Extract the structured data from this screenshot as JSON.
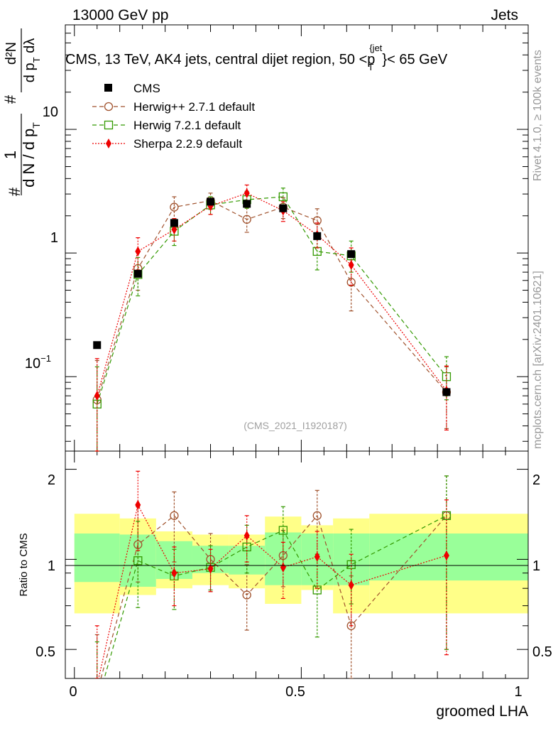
{
  "header": {
    "left": "13000 GeV pp",
    "right": "Jets"
  },
  "side_text": {
    "rivet": "Rivet 4.1.0, ≥ 100k events",
    "mcplots": "mcplots.cern.ch [arXiv:2401.10621]"
  },
  "chart_data": [
    {
      "type": "scatter",
      "panel": "main",
      "title": "CMS, 13 TeV, AK4 jets, central dijet region, 50 <p_T^{jet}< 65 GeV",
      "title_parts": {
        "pre": "CMS, 13 TeV, AK4 jets, central dijet region, 50 <p",
        "sub": "T",
        "sup": "{jet",
        "post": "}< 65 GeV"
      },
      "ylabel_parts": {
        "num": "1",
        "den": "d N / d p",
        "den_sub": "T",
        "hash": "#",
        "rnum": "d²N",
        "rden": "d p",
        "rden_sub": "T",
        "rden_post": " dλ"
      },
      "yscale": "log",
      "ylim": [
        0.025,
        70
      ],
      "xlim": [
        -0.02,
        1.0
      ],
      "ytick_labels": {
        "ten": "10",
        "one": "1",
        "tenth": "10",
        "tenth_exp": "−1"
      },
      "watermark": "(CMS_2021_I1920187)",
      "x": [
        0.05,
        0.14,
        0.22,
        0.3,
        0.38,
        0.46,
        0.535,
        0.61,
        0.82
      ],
      "series": [
        {
          "name": "CMS",
          "color": "#000000",
          "marker": "square-filled",
          "line": "none",
          "values": [
            0.18,
            0.68,
            1.75,
            2.6,
            2.5,
            2.3,
            1.37,
            0.98,
            0.075
          ]
        },
        {
          "name": "Herwig++ 2.7.1 default",
          "color": "#a0522d",
          "marker": "circle-open",
          "line": "dashed",
          "values": [
            0.065,
            0.75,
            2.35,
            2.65,
            1.87,
            2.35,
            1.83,
            0.58,
            0.075
          ],
          "err_low": [
            0.04,
            0.25,
            0.5,
            0.4,
            0.4,
            0.45,
            0.45,
            0.24,
            0.037
          ],
          "err_high": [
            0.07,
            0.3,
            0.5,
            0.4,
            0.45,
            0.45,
            0.45,
            0.3,
            0.045
          ]
        },
        {
          "name": "Herwig 7.2.1 default",
          "color": "#339900",
          "marker": "square-open",
          "line": "dashed",
          "values": [
            0.06,
            0.67,
            1.5,
            2.45,
            2.7,
            2.85,
            1.03,
            0.95,
            0.1
          ],
          "err_low": [
            0.035,
            0.22,
            0.35,
            0.4,
            0.4,
            0.5,
            0.3,
            0.25,
            0.035
          ],
          "err_high": [
            0.06,
            0.25,
            0.4,
            0.4,
            0.45,
            0.5,
            0.35,
            0.3,
            0.045
          ]
        },
        {
          "name": "Sherpa 2.2.9 default",
          "color": "#ee0000",
          "marker": "diamond-filled",
          "line": "dotted",
          "values": [
            0.07,
            1.03,
            1.55,
            2.4,
            3.05,
            2.2,
            1.4,
            0.8,
            0.077
          ],
          "err_low": [
            0.045,
            0.3,
            0.3,
            0.35,
            0.45,
            0.4,
            0.3,
            0.25,
            0.04
          ],
          "err_high": [
            0.07,
            0.3,
            0.35,
            0.35,
            0.5,
            0.4,
            0.35,
            0.3,
            0.045
          ]
        }
      ]
    },
    {
      "type": "scatter",
      "panel": "ratio",
      "ylabel": "Ratio to CMS",
      "xlabel": "groomed LHA",
      "ylim": [
        0.4,
        2.3
      ],
      "xlim": [
        -0.02,
        1.0
      ],
      "xtick_labels": [
        "0",
        "0.5",
        "1"
      ],
      "ytick_labels": [
        "0.5",
        "1",
        "2"
      ],
      "bin_edges": [
        0.0,
        0.1,
        0.18,
        0.26,
        0.34,
        0.42,
        0.5,
        0.57,
        0.65,
        1.0
      ],
      "band_inner": [
        [
          0.84,
          1.22
        ],
        [
          0.81,
          1.21
        ],
        [
          0.86,
          1.15
        ],
        [
          0.9,
          1.11
        ],
        [
          0.89,
          1.11
        ],
        [
          0.82,
          1.23
        ],
        [
          0.82,
          1.22
        ],
        [
          0.82,
          1.22
        ],
        [
          0.85,
          1.22
        ]
      ],
      "band_outer": [
        [
          0.66,
          1.42
        ],
        [
          0.76,
          1.37
        ],
        [
          0.8,
          1.24
        ],
        [
          0.82,
          1.21
        ],
        [
          0.8,
          1.21
        ],
        [
          0.71,
          1.39
        ],
        [
          0.79,
          1.3
        ],
        [
          0.66,
          1.37
        ],
        [
          0.66,
          1.42
        ]
      ],
      "x": [
        0.05,
        0.14,
        0.22,
        0.3,
        0.38,
        0.46,
        0.535,
        0.61,
        0.82
      ],
      "series": [
        {
          "name": "Herwig++ 2.7.1 default",
          "color": "#a0522d",
          "marker": "circle-open",
          "line": "dashed",
          "values": [
            0.36,
            1.12,
            1.4,
            1.0,
            0.76,
            1.03,
            1.4,
            0.6,
            1.4
          ],
          "err_low": [
            0.2,
            0.28,
            0.42,
            0.22,
            0.18,
            0.22,
            0.36,
            0.25,
            0.9
          ],
          "err_high": [
            0.2,
            0.38,
            0.28,
            0.22,
            0.2,
            0.22,
            0.3,
            0.28,
            0.5
          ]
        },
        {
          "name": "Herwig 7.2.1 default",
          "color": "#339900",
          "marker": "square-open",
          "line": "dashed",
          "values": [
            0.33,
            0.99,
            0.88,
            0.94,
            1.1,
            1.25,
            0.79,
            0.96,
            1.4
          ],
          "err_low": [
            0.2,
            0.3,
            0.2,
            0.15,
            0.2,
            0.3,
            0.24,
            0.25,
            0.9
          ],
          "err_high": [
            0.2,
            0.35,
            0.2,
            0.17,
            0.2,
            0.25,
            0.25,
            0.3,
            0.5
          ]
        },
        {
          "name": "Sherpa 2.2.9 default",
          "color": "#ee0000",
          "marker": "diamond-filled",
          "line": "dotted",
          "values": [
            0.38,
            1.52,
            0.9,
            0.93,
            1.2,
            0.94,
            1.02,
            0.82,
            1.03
          ],
          "err_low": [
            0.22,
            0.45,
            0.2,
            0.15,
            0.22,
            0.2,
            0.22,
            0.22,
            0.55
          ],
          "err_high": [
            0.22,
            0.45,
            0.2,
            0.15,
            0.2,
            0.2,
            0.22,
            0.22,
            0.55
          ]
        }
      ]
    }
  ]
}
